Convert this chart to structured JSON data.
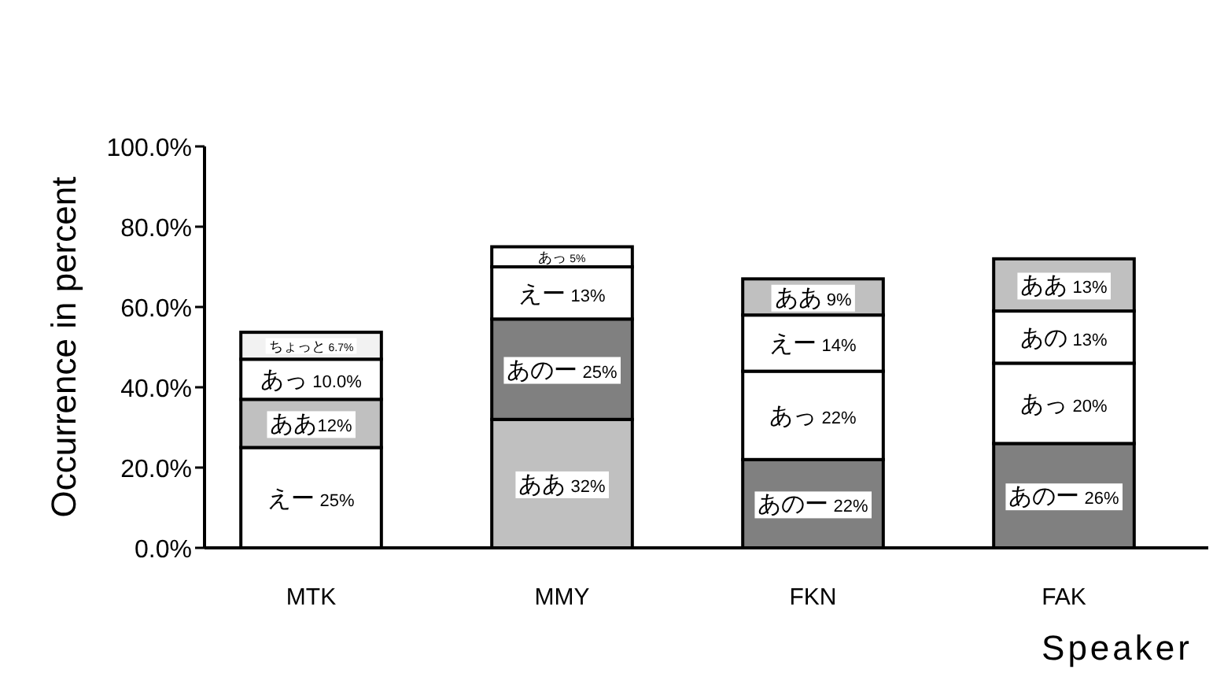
{
  "chart_data": {
    "type": "bar",
    "stacked": true,
    "xlabel": "Speaker",
    "ylabel": "Occurrence in percent",
    "categories": [
      "MTK",
      "MMY",
      "FKN",
      "FAK"
    ],
    "ylim": [
      0,
      100
    ],
    "yticks": [
      {
        "value": 0,
        "label": "0.0%"
      },
      {
        "value": 20,
        "label": "20.0%"
      },
      {
        "value": 40,
        "label": "40.0%"
      },
      {
        "value": 60,
        "label": "60.0%"
      },
      {
        "value": 80,
        "label": "80.0%"
      },
      {
        "value": 100,
        "label": "100.0%"
      }
    ],
    "grid": false,
    "series": [
      {
        "values": [
          25,
          32,
          22,
          26
        ],
        "colors": [
          "#ffffff",
          "#c0c0c0",
          "#808080",
          "#808080"
        ],
        "value_labels": [
          "えー 25%",
          "ああ 32%",
          "あのー 22%",
          "あのー 26%"
        ]
      },
      {
        "values": [
          12,
          25,
          22,
          20
        ],
        "colors": [
          "#c0c0c0",
          "#808080",
          "#ffffff",
          "#ffffff"
        ],
        "value_labels": [
          "ああ12%",
          "あのー 25%",
          "あっ 22%",
          "あっ 20%"
        ]
      },
      {
        "values": [
          10.0,
          13,
          14,
          13
        ],
        "colors": [
          "#ffffff",
          "#ffffff",
          "#ffffff",
          "#ffffff"
        ],
        "value_labels": [
          "あっ 10.0%",
          "えー 13%",
          "えー 14%",
          "あの 13%"
        ]
      },
      {
        "values": [
          6.7,
          5,
          9,
          13
        ],
        "colors": [
          "#f2f2f2",
          "#ffffff",
          "#c0c0c0",
          "#c0c0c0"
        ],
        "value_labels": [
          "ちょっと 6.7%",
          "あっ 5%",
          "ああ 9%",
          "ああ 13%"
        ]
      }
    ]
  }
}
